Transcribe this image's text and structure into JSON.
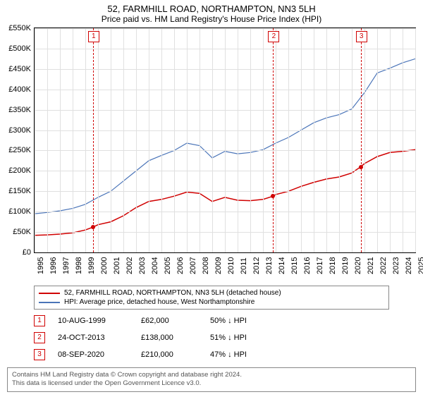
{
  "title": "52, FARMHILL ROAD, NORTHAMPTON, NN3 5LH",
  "subtitle": "Price paid vs. HM Land Registry's House Price Index (HPI)",
  "chart": {
    "type": "line",
    "background_color": "#ffffff",
    "grid_color": "#e0e0e0",
    "ylim": [
      0,
      550000
    ],
    "ytick_step": 50000,
    "y_ticks": [
      "£0",
      "£50K",
      "£100K",
      "£150K",
      "£200K",
      "£250K",
      "£300K",
      "£350K",
      "£400K",
      "£450K",
      "£500K",
      "£550K"
    ],
    "xlim": [
      1995,
      2025
    ],
    "x_ticks": [
      1995,
      1996,
      1997,
      1998,
      1999,
      2000,
      2001,
      2002,
      2003,
      2004,
      2005,
      2006,
      2007,
      2008,
      2009,
      2010,
      2011,
      2012,
      2013,
      2014,
      2015,
      2016,
      2017,
      2018,
      2019,
      2020,
      2021,
      2022,
      2023,
      2024,
      2025
    ],
    "title_fontsize": 13,
    "label_fontsize": 11,
    "series": [
      {
        "name": "property",
        "color": "#d00000",
        "line_width": 1.5,
        "data": [
          [
            1995,
            42000
          ],
          [
            1996,
            43000
          ],
          [
            1997,
            45000
          ],
          [
            1998,
            48000
          ],
          [
            1999,
            55000
          ],
          [
            1999.6,
            62000
          ],
          [
            2000,
            68000
          ],
          [
            2001,
            75000
          ],
          [
            2002,
            90000
          ],
          [
            2003,
            110000
          ],
          [
            2004,
            125000
          ],
          [
            2005,
            130000
          ],
          [
            2006,
            138000
          ],
          [
            2007,
            148000
          ],
          [
            2008,
            145000
          ],
          [
            2009,
            125000
          ],
          [
            2010,
            135000
          ],
          [
            2011,
            128000
          ],
          [
            2012,
            127000
          ],
          [
            2013,
            130000
          ],
          [
            2013.8,
            138000
          ],
          [
            2014,
            142000
          ],
          [
            2015,
            150000
          ],
          [
            2016,
            162000
          ],
          [
            2017,
            172000
          ],
          [
            2018,
            180000
          ],
          [
            2019,
            185000
          ],
          [
            2020,
            195000
          ],
          [
            2020.7,
            210000
          ],
          [
            2021,
            218000
          ],
          [
            2022,
            235000
          ],
          [
            2023,
            245000
          ],
          [
            2024,
            248000
          ],
          [
            2025,
            252000
          ]
        ]
      },
      {
        "name": "hpi",
        "color": "#4a74b8",
        "line_width": 1.2,
        "data": [
          [
            1995,
            95000
          ],
          [
            1996,
            98000
          ],
          [
            1997,
            102000
          ],
          [
            1998,
            108000
          ],
          [
            1999,
            118000
          ],
          [
            2000,
            135000
          ],
          [
            2001,
            150000
          ],
          [
            2002,
            175000
          ],
          [
            2003,
            200000
          ],
          [
            2004,
            225000
          ],
          [
            2005,
            238000
          ],
          [
            2006,
            250000
          ],
          [
            2007,
            268000
          ],
          [
            2008,
            262000
          ],
          [
            2009,
            232000
          ],
          [
            2010,
            248000
          ],
          [
            2011,
            242000
          ],
          [
            2012,
            245000
          ],
          [
            2013,
            252000
          ],
          [
            2014,
            268000
          ],
          [
            2015,
            282000
          ],
          [
            2016,
            300000
          ],
          [
            2017,
            318000
          ],
          [
            2018,
            330000
          ],
          [
            2019,
            338000
          ],
          [
            2020,
            352000
          ],
          [
            2021,
            392000
          ],
          [
            2022,
            440000
          ],
          [
            2023,
            452000
          ],
          [
            2024,
            465000
          ],
          [
            2025,
            475000
          ]
        ]
      }
    ],
    "sale_points": [
      {
        "x": 1999.6,
        "y": 62000,
        "color": "#d00000"
      },
      {
        "x": 2013.8,
        "y": 138000,
        "color": "#d00000"
      },
      {
        "x": 2020.7,
        "y": 210000,
        "color": "#d00000"
      }
    ],
    "markers": [
      {
        "num": "1",
        "x": 1999.6
      },
      {
        "num": "2",
        "x": 2013.8
      },
      {
        "num": "3",
        "x": 2020.7
      }
    ]
  },
  "legend": [
    {
      "color": "#d00000",
      "label": "52, FARMHILL ROAD, NORTHAMPTON, NN3 5LH (detached house)"
    },
    {
      "color": "#4a74b8",
      "label": "HPI: Average price, detached house, West Northamptonshire"
    }
  ],
  "transactions": [
    {
      "num": "1",
      "date": "10-AUG-1999",
      "price": "£62,000",
      "hpi": "50% ↓ HPI"
    },
    {
      "num": "2",
      "date": "24-OCT-2013",
      "price": "£138,000",
      "hpi": "51% ↓ HPI"
    },
    {
      "num": "3",
      "date": "08-SEP-2020",
      "price": "£210,000",
      "hpi": "47% ↓ HPI"
    }
  ],
  "footer_line1": "Contains HM Land Registry data © Crown copyright and database right 2024.",
  "footer_line2": "This data is licensed under the Open Government Licence v3.0."
}
